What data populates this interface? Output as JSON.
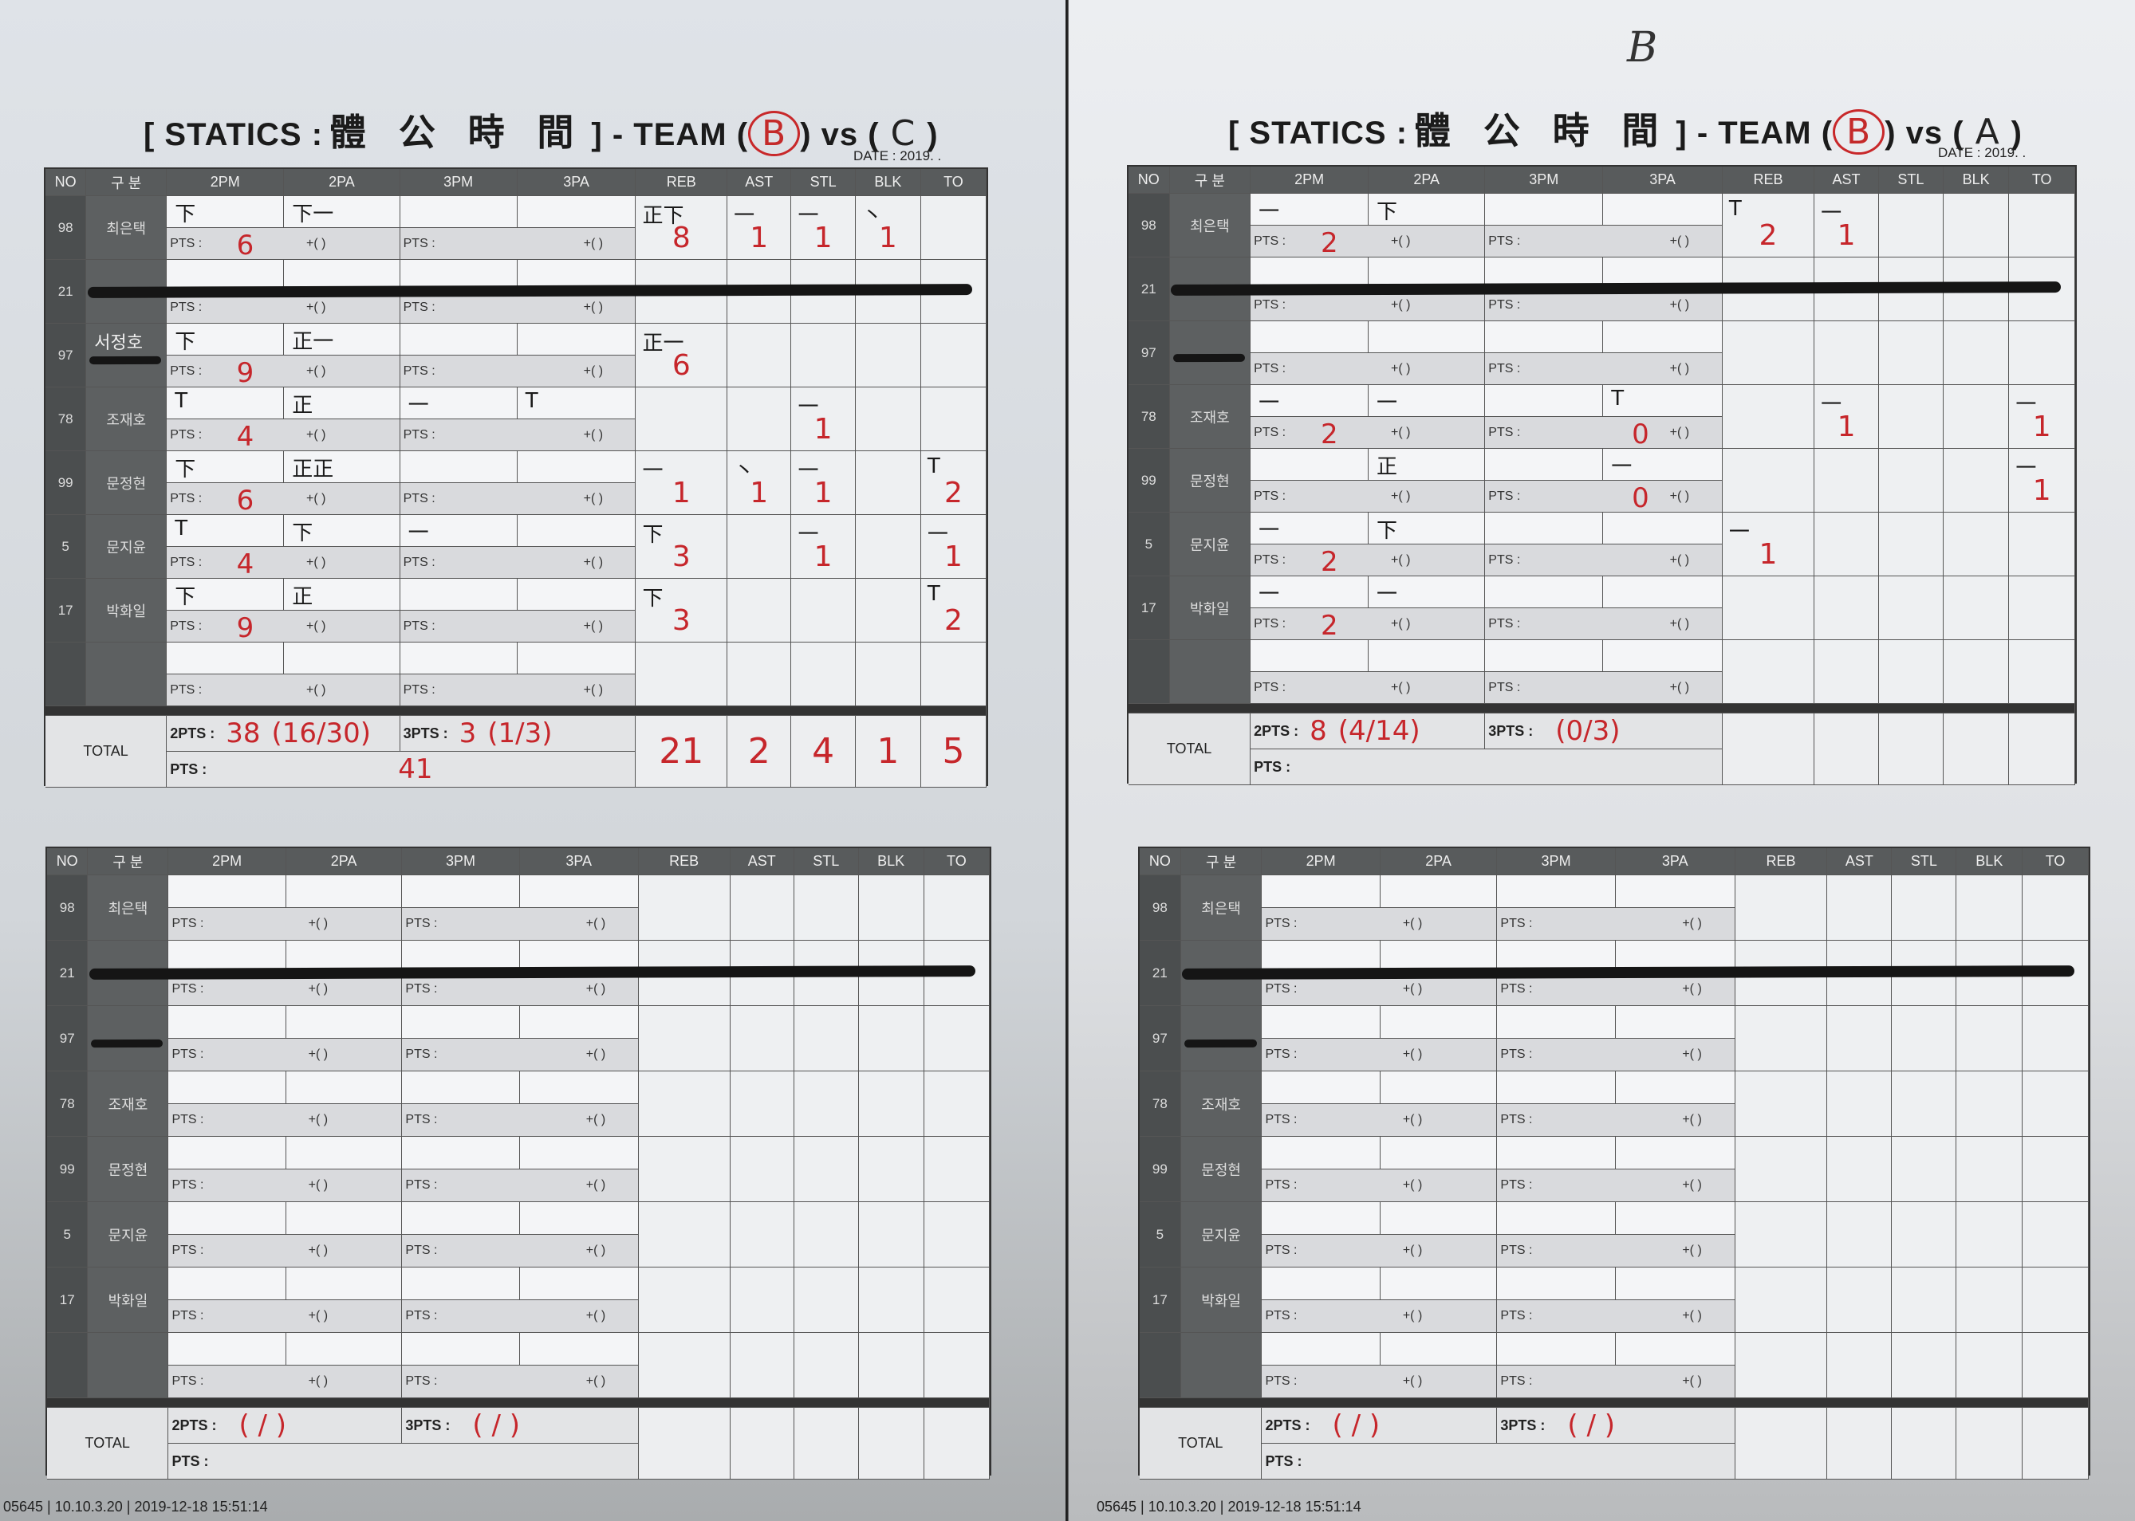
{
  "colors": {
    "ink_red": "#c6262b",
    "header_gray": "#585b5c",
    "pts_row_gray": "#d9dadd"
  },
  "top_mark": "B",
  "footer": "05645 | 10.10.3.20 | 2019-12-18 15:51:14",
  "labels": {
    "pts": "PTS :",
    "plus": "+(     )",
    "total": "TOTAL",
    "pts2": "2PTS :",
    "pts3": "3PTS :",
    "columns": [
      "NO",
      "구 분",
      "2PM",
      "2PA",
      "3PM",
      "3PA",
      "REB",
      "AST",
      "STL",
      "BLK",
      "TO"
    ]
  },
  "sheets": [
    {
      "title": {
        "prefix": "[ STATICS :",
        "hanja": "體 公 時 間",
        "mid": "] - TEAM (",
        "team": "B",
        "vs": ") vs (",
        "opponent": "C",
        "close": ")"
      },
      "date": "DATE : 2019.    .",
      "rows": [
        {
          "no": "98",
          "name": "최은택",
          "struck": false,
          "marks": [
            "下",
            "下一",
            "",
            ""
          ],
          "pts2": "6",
          "pts3": "",
          "stats": [
            {
              "tally": "正下",
              "value": "8"
            },
            {
              "tally": "一",
              "value": "1"
            },
            {
              "tally": "一",
              "value": "1"
            },
            {
              "tally": "丶",
              "value": "1"
            },
            {
              "tally": "",
              "value": ""
            }
          ]
        },
        {
          "no": "21",
          "name": "",
          "struck": true,
          "marks": [
            "",
            "",
            "",
            ""
          ],
          "pts2": "",
          "pts3": "",
          "stats": [
            {},
            {},
            {},
            {},
            {}
          ]
        },
        {
          "no": "97",
          "name": "",
          "handwritten_name": "서정호",
          "struck_name": true,
          "marks": [
            "下",
            "正一",
            "",
            ""
          ],
          "pts2": "9",
          "pts3": "",
          "stats": [
            {
              "tally": "正一",
              "value": "6"
            },
            {},
            {},
            {},
            {}
          ]
        },
        {
          "no": "78",
          "name": "조재호",
          "marks": [
            "T",
            "正",
            "一",
            "T"
          ],
          "pts2": "4",
          "pts3": "",
          "stats": [
            {},
            {},
            {
              "tally": "一",
              "value": "1"
            },
            {},
            {}
          ]
        },
        {
          "no": "99",
          "name": "문정현",
          "marks": [
            "下",
            "正正",
            "",
            ""
          ],
          "pts2": "6",
          "pts3": "",
          "stats": [
            {
              "tally": "一",
              "value": "1"
            },
            {
              "tally": "丶",
              "value": "1"
            },
            {
              "tally": "一",
              "value": "1"
            },
            {},
            {
              "tally": "T",
              "value": "2"
            }
          ]
        },
        {
          "no": "5",
          "name": "문지윤",
          "marks": [
            "T",
            "下",
            "一",
            ""
          ],
          "pts2": "4",
          "pts3": "",
          "stats": [
            {
              "tally": "下",
              "value": "3"
            },
            {},
            {
              "tally": "一",
              "value": "1"
            },
            {},
            {
              "tally": "一",
              "value": "1"
            }
          ]
        },
        {
          "no": "17",
          "name": "박화일",
          "marks": [
            "下",
            "正",
            "",
            ""
          ],
          "pts2": "9",
          "pts3": "",
          "stats": [
            {
              "tally": "下",
              "value": "3"
            },
            {},
            {},
            {},
            {
              "tally": "T",
              "value": "2"
            }
          ]
        },
        {
          "no": "",
          "name": "",
          "marks": [
            "",
            "",
            "",
            ""
          ],
          "pts2": "",
          "pts3": "",
          "stats": [
            {},
            {},
            {},
            {},
            {}
          ]
        }
      ],
      "total": {
        "pts2": "38",
        "pts2_ratio": "(16/30)",
        "pts3": "3",
        "pts3_ratio": "(1/3)",
        "pts": "41",
        "stats": [
          "21",
          "2",
          "4",
          "1",
          "5"
        ]
      }
    },
    {
      "title": {
        "prefix": "[ STATICS :",
        "hanja": "體 公 時 間",
        "mid": "] - TEAM (",
        "team": "B",
        "vs": ") vs (",
        "opponent": "A",
        "close": ")"
      },
      "date": "DATE : 2019.    .",
      "rows": [
        {
          "no": "98",
          "name": "최은택",
          "marks": [
            "一",
            "下",
            "",
            ""
          ],
          "pts2": "2",
          "pts3": "",
          "stats": [
            {
              "tally": "T",
              "value": "2"
            },
            {
              "tally": "一",
              "value": "1"
            },
            {},
            {},
            {}
          ]
        },
        {
          "no": "21",
          "name": "",
          "struck": true,
          "marks": [
            "",
            "",
            "",
            ""
          ],
          "pts2": "",
          "pts3": "",
          "stats": [
            {},
            {},
            {},
            {},
            {}
          ]
        },
        {
          "no": "97",
          "name": "",
          "struck_name": true,
          "marks": [
            "",
            "",
            "",
            ""
          ],
          "pts2": "",
          "pts3": "",
          "stats": [
            {},
            {},
            {},
            {},
            {}
          ]
        },
        {
          "no": "78",
          "name": "조재호",
          "marks": [
            "一",
            "一",
            "",
            "T"
          ],
          "pts2": "2",
          "pts3": "0",
          "stats": [
            {},
            {
              "tally": "一",
              "value": "1"
            },
            {},
            {},
            {
              "tally": "一",
              "value": "1"
            }
          ]
        },
        {
          "no": "99",
          "name": "문정현",
          "marks": [
            "",
            "正",
            "",
            "一"
          ],
          "pts2": "",
          "pts3": "0",
          "stats": [
            {},
            {},
            {},
            {},
            {
              "tally": "一",
              "value": "1"
            }
          ]
        },
        {
          "no": "5",
          "name": "문지윤",
          "marks": [
            "一",
            "下",
            "",
            ""
          ],
          "pts2": "2",
          "pts3": "",
          "stats": [
            {
              "tally": "一",
              "value": "1"
            },
            {},
            {},
            {},
            {}
          ]
        },
        {
          "no": "17",
          "name": "박화일",
          "marks": [
            "一",
            "一",
            "",
            ""
          ],
          "pts2": "2",
          "pts3": "",
          "stats": [
            {},
            {},
            {},
            {},
            {}
          ]
        },
        {
          "no": "",
          "name": "",
          "marks": [
            "",
            "",
            "",
            ""
          ],
          "pts2": "",
          "pts3": "",
          "stats": [
            {},
            {},
            {},
            {},
            {}
          ]
        }
      ],
      "total": {
        "pts2": "8",
        "pts2_ratio": "(4/14)",
        "pts3": "",
        "pts3_ratio": "(0/3)",
        "pts": "",
        "stats": [
          "",
          "",
          "",
          "",
          ""
        ]
      }
    },
    {
      "rows": [
        {
          "no": "98",
          "name": "최은택"
        },
        {
          "no": "21",
          "name": "",
          "struck": true
        },
        {
          "no": "97",
          "name": "",
          "struck_name": true
        },
        {
          "no": "78",
          "name": "조재호"
        },
        {
          "no": "99",
          "name": "문정현"
        },
        {
          "no": "5",
          "name": "문지윤"
        },
        {
          "no": "17",
          "name": "박화일"
        },
        {
          "no": "",
          "name": ""
        }
      ],
      "total": {
        "pts2_ratio": "(   /   )",
        "pts3_ratio": "(   /   )"
      }
    },
    {
      "rows": [
        {
          "no": "98",
          "name": "최은택"
        },
        {
          "no": "21",
          "name": "",
          "struck": true
        },
        {
          "no": "97",
          "name": "",
          "struck_name": true
        },
        {
          "no": "78",
          "name": "조재호"
        },
        {
          "no": "99",
          "name": "문정현"
        },
        {
          "no": "5",
          "name": "문지윤"
        },
        {
          "no": "17",
          "name": "박화일"
        },
        {
          "no": "",
          "name": ""
        }
      ],
      "total": {
        "pts2_ratio": "(   /   )",
        "pts3_ratio": "(   /   )"
      }
    }
  ]
}
